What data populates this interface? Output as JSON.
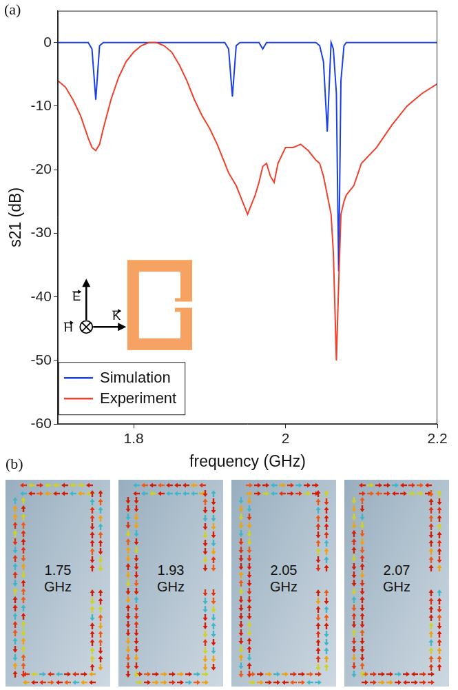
{
  "chart_data": {
    "type": "line",
    "panel_label": "(a)",
    "x_label": "frequency (GHz)",
    "y_label": "s21 (dB)",
    "annotations": [
      "E",
      "H",
      "K"
    ],
    "x": [
      1.7,
      1.71,
      1.72,
      1.73,
      1.74,
      1.745,
      1.75,
      1.755,
      1.76,
      1.77,
      1.78,
      1.79,
      1.8,
      1.81,
      1.82,
      1.83,
      1.84,
      1.85,
      1.86,
      1.87,
      1.88,
      1.89,
      1.9,
      1.91,
      1.92,
      1.925,
      1.93,
      1.935,
      1.94,
      1.95,
      1.96,
      1.965,
      1.97,
      1.975,
      1.98,
      1.985,
      1.99,
      2.0,
      2.01,
      2.02,
      2.03,
      2.04,
      2.045,
      2.05,
      2.055,
      2.06,
      2.063,
      2.067,
      2.07,
      2.073,
      2.077,
      2.08,
      2.09,
      2.1,
      2.12,
      2.14,
      2.16,
      2.18,
      2.2
    ],
    "series": [
      {
        "name": "Simulation",
        "color": "#1b3fe6",
        "values": [
          0,
          0,
          0,
          0,
          0,
          -1,
          -9,
          -0.5,
          0,
          0,
          0,
          0,
          0,
          0,
          0,
          0,
          0,
          0,
          0,
          0,
          0,
          0,
          0,
          0,
          0,
          -1,
          -8.5,
          -0.5,
          0,
          0,
          0,
          0,
          -1,
          0,
          0,
          0,
          0,
          0,
          0,
          0,
          0,
          0,
          -0.5,
          -3,
          -14,
          0,
          -1,
          -8,
          -36,
          -6,
          -0.5,
          0,
          0,
          0,
          0,
          0,
          0,
          0,
          0
        ]
      },
      {
        "name": "Experiment",
        "color": "#f0402a",
        "values": [
          -6,
          -7,
          -9,
          -11.5,
          -15,
          -16.5,
          -17,
          -16,
          -13.5,
          -9,
          -5.5,
          -3,
          -1.5,
          -0.5,
          0,
          0,
          -0.5,
          -1.5,
          -3.5,
          -6,
          -9,
          -11.5,
          -13.5,
          -16,
          -19,
          -20.5,
          -21.5,
          -22.5,
          -24,
          -27,
          -24,
          -22,
          -19.5,
          -19,
          -21,
          -22,
          -19,
          -16.5,
          -16.5,
          -16,
          -17,
          -18.5,
          -19,
          -21,
          -24,
          -27,
          -33,
          -50,
          -38,
          -27,
          -25,
          -24,
          -22.5,
          -19,
          -16.5,
          -13,
          -10,
          -8,
          -6.5
        ]
      }
    ],
    "xlim": [
      1.7,
      2.2
    ],
    "xticks": [
      1.8,
      2,
      2.2
    ],
    "ylim": [
      -60,
      5
    ],
    "yticks": [
      -60,
      -50,
      -40,
      -30,
      -20,
      -10,
      0
    ],
    "grid": false,
    "legend": "lower left"
  },
  "panel_b": {
    "label": "(b)",
    "frames": [
      "1.75 GHz",
      "1.93 GHz",
      "2.05 GHz",
      "2.07 GHz"
    ]
  }
}
